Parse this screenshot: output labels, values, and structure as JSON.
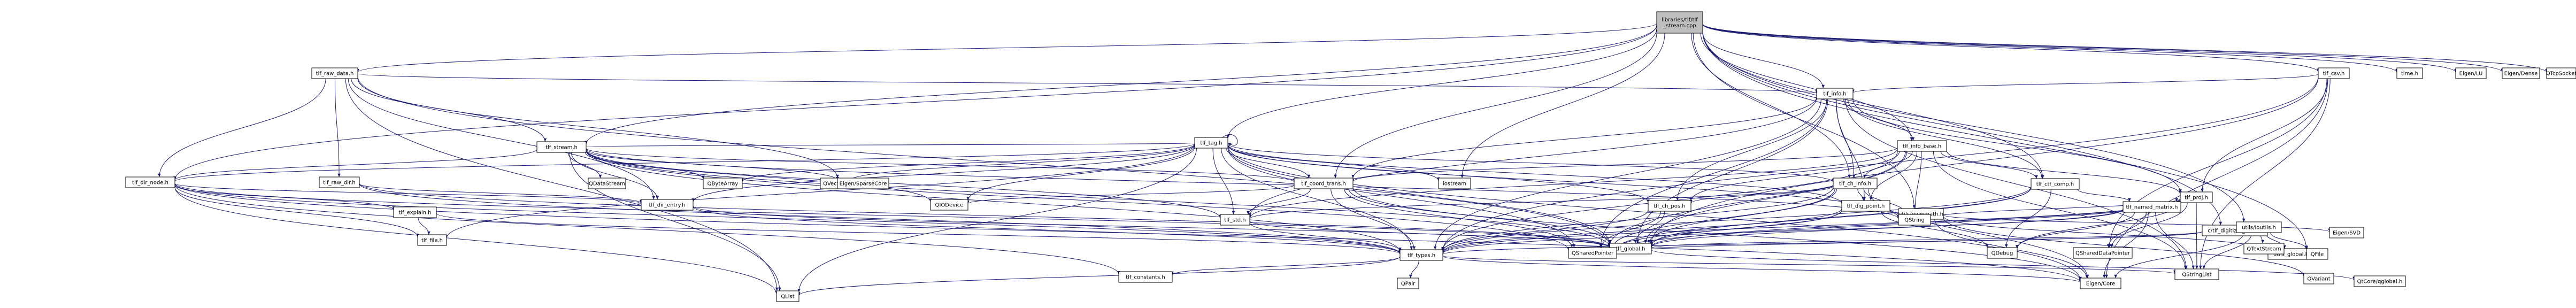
{
  "colors": {
    "edge": "#191970",
    "node_fill": "#ffffff",
    "root_fill": "#bfbfbf",
    "node_with_page_fill": "#ffffff",
    "missing_node_text": "#b00000",
    "border": "#000000"
  },
  "graph": {
    "root": [
      "libraries/tlf/tlf",
      "_stream.cpp"
    ],
    "nodes": {
      "tlf_raw_data_h": "tlf_raw_data.h",
      "tlf_info_h": "tlf_info.h",
      "tlf_csv_h": "tlf_csv.h",
      "utils_mvwmath_h": "utils/mvwmath.h",
      "time_h": "time.h",
      "eigen_lu": "Eigen/LU",
      "eigen_dense": "Eigen/Dense",
      "qtcpsocket": "QTcpSocket",
      "tlf_stream_h": "tlf_stream.h",
      "tlf_dir_node_h": "tlf_dir_node.h",
      "tlf_raw_dir_h": "tlf_raw_dir.h",
      "tlf_dir_entry_h": "tlf_dir_entry.h",
      "tlf_explain_h": "tlf_explain.h",
      "tlf_file_h": "tlf_file.h",
      "tlf_tag_h": "tlf_tag.h",
      "tlf_coord_trans_h": "tlf_coord_trans.h",
      "tlf_info_base_h": "tlf_info_base.h",
      "tlf_ch_info_h": "tlf_ch_info.h",
      "tlf_ch_pos_h": "tlf_ch_pos.h",
      "tlf_dig_point_h": "tlf_dig_point.h",
      "tlf_ctf_comp_h": "tlf_ctf_comp.h",
      "tlf_proj_h": "tlf_proj.h",
      "tlf_named_matrix_h": "tlf_named_matrix.h",
      "tlf_dig_data_h": "c/tlf_digitizer_data.h",
      "tlf_std_h": "tlf_std.h",
      "tlf_types_h": "tlf_types.h",
      "tlf_global_h": "tlf_global.h",
      "tlf_constants_h": "tlf_constants.h",
      "utils_ioutils_h": "utils/ioutils.h",
      "utils_global_h": "utils_global.h",
      "qbytearray": "QByteArray",
      "qvector": "QVector",
      "qdatastream": "QDataStream",
      "qiodevice": "QIODevice",
      "qstring": "QString",
      "qlist": "QList",
      "qdebug": "QDebug",
      "qsharedpointer": "QSharedPointer",
      "qshareddatapointer": "QSharedDataPointer",
      "qstringlist": "QStringList",
      "qfile": "QFile",
      "qtextstream": "QTextStream",
      "qpair": "QPair",
      "qvariant": "QVariant",
      "qcoreglobal": "QtCore/qglobal.h",
      "iostream": "iostream",
      "eigen_sparsecore": "Eigen/SparseCore",
      "eigen_core": "Eigen/Core",
      "eigen_svd": "Eigen/SVD"
    }
  }
}
